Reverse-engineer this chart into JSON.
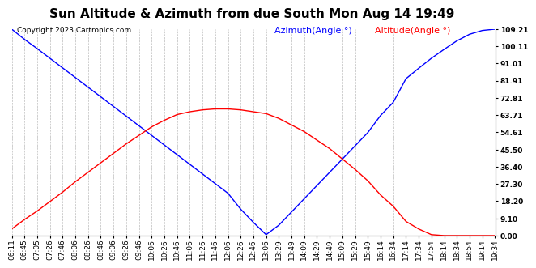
{
  "title": "Sun Altitude & Azimuth from due South Mon Aug 14 19:49",
  "copyright": "Copyright 2023 Cartronics.com",
  "legend_azimuth": "Azimuth(Angle °)",
  "legend_altitude": "Altitude(Angle °)",
  "azimuth_color": "blue",
  "altitude_color": "red",
  "background_color": "#ffffff",
  "grid_color": "#aaaaaa",
  "yticks": [
    0.0,
    9.1,
    18.2,
    27.3,
    36.4,
    45.5,
    54.61,
    63.71,
    72.81,
    81.91,
    91.01,
    100.11,
    109.21
  ],
  "ymin": 0.0,
  "ymax": 109.21,
  "x_labels": [
    "06:11",
    "06:45",
    "07:05",
    "07:26",
    "07:46",
    "08:06",
    "08:26",
    "08:46",
    "09:06",
    "09:26",
    "09:46",
    "10:06",
    "10:26",
    "10:46",
    "11:06",
    "11:26",
    "11:46",
    "12:06",
    "12:26",
    "12:46",
    "13:06",
    "13:29",
    "13:49",
    "14:09",
    "14:29",
    "14:49",
    "15:09",
    "15:29",
    "15:49",
    "16:14",
    "16:34",
    "17:14",
    "17:34",
    "17:54",
    "18:14",
    "18:34",
    "18:54",
    "19:14",
    "19:34"
  ],
  "azimuth_values": [
    109.21,
    103.8,
    98.9,
    93.8,
    88.7,
    83.6,
    78.5,
    73.4,
    68.3,
    63.2,
    58.1,
    53.0,
    47.9,
    42.8,
    37.7,
    32.6,
    27.5,
    22.4,
    14.0,
    7.0,
    0.5,
    5.5,
    12.5,
    19.5,
    26.5,
    33.5,
    40.5,
    47.5,
    54.5,
    63.5,
    70.5,
    83.0,
    88.5,
    93.8,
    98.5,
    103.0,
    106.5,
    108.5,
    109.21
  ],
  "altitude_values": [
    3.5,
    8.5,
    13.0,
    18.0,
    23.0,
    28.5,
    33.5,
    38.5,
    43.5,
    48.5,
    53.0,
    57.5,
    61.0,
    64.0,
    65.5,
    66.5,
    67.0,
    67.0,
    66.5,
    65.5,
    64.5,
    62.0,
    58.5,
    55.0,
    50.5,
    46.0,
    40.5,
    35.0,
    29.0,
    21.5,
    15.5,
    7.5,
    3.5,
    0.5,
    0.0,
    0.0,
    0.0,
    0.0,
    0.0
  ],
  "title_fontsize": 11,
  "legend_fontsize": 8,
  "tick_fontsize": 6.5,
  "copyright_fontsize": 6.5
}
